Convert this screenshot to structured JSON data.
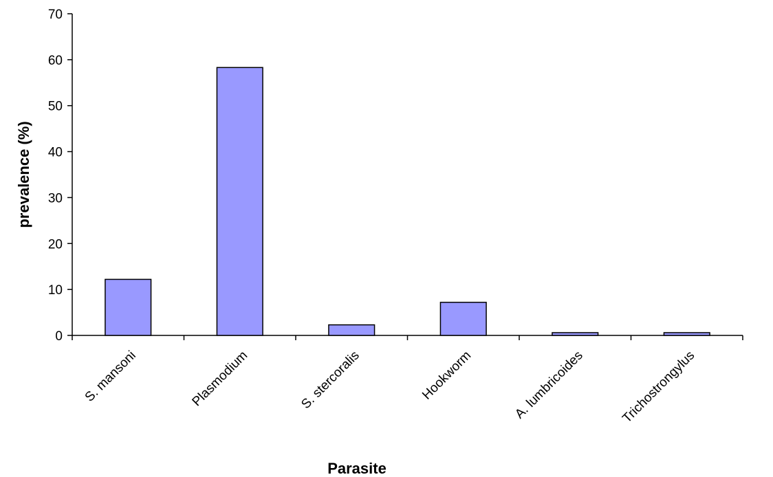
{
  "chart_data": {
    "type": "bar",
    "categories": [
      "S. mansoni",
      "Plasmodium",
      "S. stercoralis",
      "Hookworm",
      "A. lumbricoides",
      "Trichostrongylus"
    ],
    "values": [
      12.2,
      58.3,
      2.3,
      7.2,
      0.6,
      0.6
    ],
    "title": "",
    "xlabel": "Parasite",
    "ylabel": "prevalence (%)",
    "ylim": [
      0,
      70
    ],
    "yticks": [
      0,
      10,
      20,
      30,
      40,
      50,
      60,
      70
    ],
    "grid": false,
    "bar_color": "#9999ff"
  }
}
